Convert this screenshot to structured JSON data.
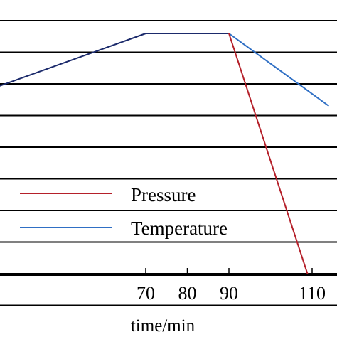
{
  "chart_data": {
    "type": "line",
    "xlabel": "time/min",
    "x_tick_values": [
      70,
      80,
      90,
      110
    ],
    "x_tick_labels": [
      "70",
      "80",
      "90",
      "110"
    ],
    "y_gridline_count": 10,
    "grid": true,
    "legend_position": "lower-left",
    "series": [
      {
        "name": "Pressure",
        "color": "#b5202a",
        "x": [
          90,
          109
        ],
        "y": [
          1.0,
          0.0
        ]
      },
      {
        "name": "Temperature",
        "color": "#2f6fc4",
        "segments": [
          {
            "color": "#1b2a6b",
            "x": [
              -2,
              70
            ],
            "y": [
              0.555,
              1.0
            ]
          },
          {
            "color": "#1b2a6b",
            "x": [
              70,
              90
            ],
            "y": [
              1.0,
              1.0
            ]
          },
          {
            "color": "#2f6fc4",
            "x": [
              90,
              114
            ],
            "y": [
              1.0,
              0.7
            ]
          }
        ]
      }
    ]
  }
}
